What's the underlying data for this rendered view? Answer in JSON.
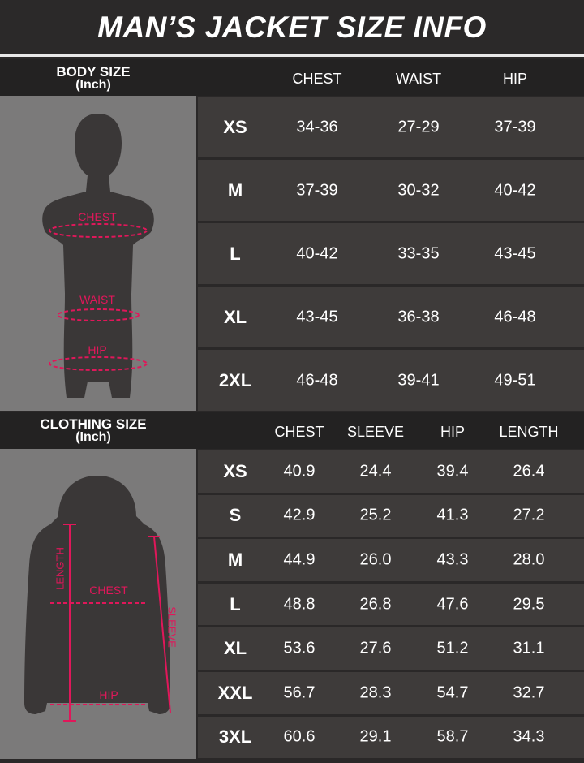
{
  "title": "MAN’S JACKET SIZE INFO",
  "colors": {
    "background": "#2a2828",
    "panel": "#7b7a7a",
    "cell": "#3e3b3a",
    "accent": "#e0175a"
  },
  "body_size": {
    "label": "BODY SIZE",
    "unit": "(Inch)",
    "columns": [
      "CHEST",
      "WAIST",
      "HIP"
    ],
    "diagram_labels": {
      "chest": "CHEST",
      "waist": "WAIST",
      "hip": "HIP"
    },
    "rows": [
      {
        "size": "XS",
        "values": [
          "34-36",
          "27-29",
          "37-39"
        ]
      },
      {
        "size": "M",
        "values": [
          "37-39",
          "30-32",
          "40-42"
        ]
      },
      {
        "size": "L",
        "values": [
          "40-42",
          "33-35",
          "43-45"
        ]
      },
      {
        "size": "XL",
        "values": [
          "43-45",
          "36-38",
          "46-48"
        ]
      },
      {
        "size": "2XL",
        "values": [
          "46-48",
          "39-41",
          "49-51"
        ]
      }
    ]
  },
  "clothing_size": {
    "label": "CLOTHING SIZE",
    "unit": "(Inch)",
    "columns": [
      "CHEST",
      "SLEEVE",
      "HIP",
      "LENGTH"
    ],
    "diagram_labels": {
      "length": "LENGTH",
      "chest": "CHEST",
      "sleeve": "SLEEVE",
      "hip": "HIP"
    },
    "rows": [
      {
        "size": "XS",
        "values": [
          "40.9",
          "24.4",
          "39.4",
          "26.4"
        ]
      },
      {
        "size": "S",
        "values": [
          "42.9",
          "25.2",
          "41.3",
          "27.2"
        ]
      },
      {
        "size": "M",
        "values": [
          "44.9",
          "26.0",
          "43.3",
          "28.0"
        ]
      },
      {
        "size": "L",
        "values": [
          "48.8",
          "26.8",
          "47.6",
          "29.5"
        ]
      },
      {
        "size": "XL",
        "values": [
          "53.6",
          "27.6",
          "51.2",
          "31.1"
        ]
      },
      {
        "size": "XXL",
        "values": [
          "56.7",
          "28.3",
          "54.7",
          "32.7"
        ]
      },
      {
        "size": "3XL",
        "values": [
          "60.6",
          "29.1",
          "58.7",
          "34.3"
        ]
      }
    ]
  }
}
